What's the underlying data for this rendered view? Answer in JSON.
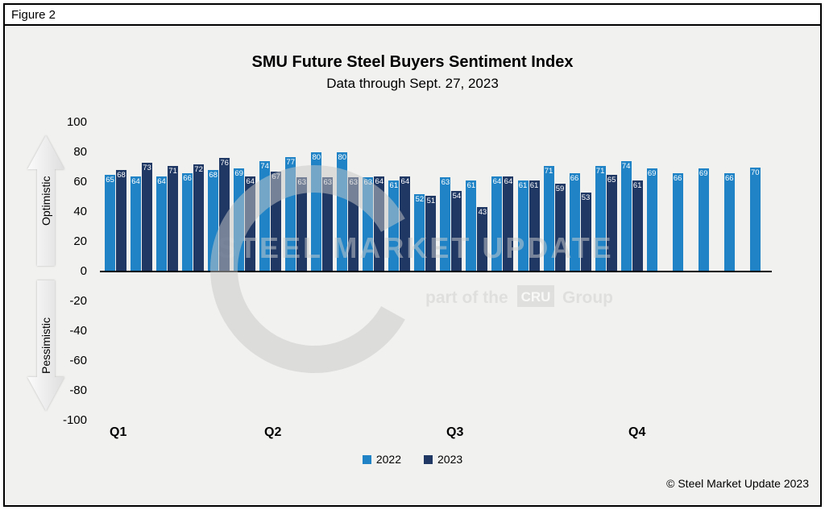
{
  "header": {
    "figure_label": "Figure 2"
  },
  "footer": {
    "copyright": "© Steel Market Update 2023"
  },
  "watermark": {
    "title": "STEEL MARKET UPDATE",
    "part_of": "part of the",
    "cru": "CRU",
    "group": "Group"
  },
  "chart_data": {
    "type": "bar",
    "title": "SMU Future Steel Buyers Sentiment Index",
    "subtitle": "Data through Sept. 27, 2023",
    "ylim": [
      -100,
      100
    ],
    "yticks": [
      100,
      80,
      60,
      40,
      20,
      0,
      -20,
      -40,
      -60,
      -80,
      -100
    ],
    "grid": false,
    "legend_position": "bottom",
    "x_quarter_labels": [
      "Q1",
      "Q2",
      "Q3",
      "Q4"
    ],
    "axis_annotations": {
      "positive": "Optimistic",
      "negative": "Pessimistic"
    },
    "series": [
      {
        "name": "2022",
        "color": "#1F83C5",
        "values": [
          65,
          64,
          64,
          66,
          68,
          69,
          74,
          77,
          80,
          80,
          63,
          61,
          52,
          63,
          61,
          64,
          61,
          71,
          66,
          71,
          74,
          69,
          66,
          69,
          66,
          70
        ]
      },
      {
        "name": "2023",
        "color": "#1F3864",
        "values": [
          68,
          73,
          71,
          72,
          76,
          64,
          67,
          63,
          63,
          63,
          64,
          64,
          51,
          54,
          43,
          64,
          61,
          59,
          53,
          65,
          61
        ]
      }
    ]
  }
}
